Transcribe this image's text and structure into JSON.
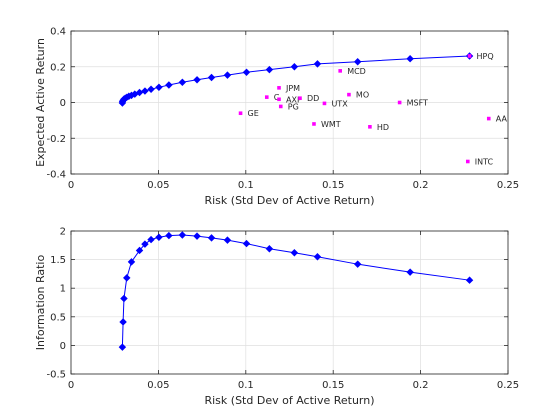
{
  "chart_data": [
    {
      "type": "scatter",
      "title": "",
      "xlabel": "Risk (Std Dev of Active Return)",
      "ylabel": "Expected Active Return",
      "xlim": [
        0,
        0.25
      ],
      "ylim": [
        -0.4,
        0.4
      ],
      "xticks": [
        0,
        0.05,
        0.1,
        0.15,
        0.2,
        0.25
      ],
      "yticks": [
        -0.4,
        -0.2,
        0,
        0.2,
        0.4
      ],
      "xtick_labels": [
        "0",
        "0.05",
        "0.1",
        "0.15",
        "0.2",
        "0.25"
      ],
      "ytick_labels": [
        "-0.4",
        "-0.2",
        "0",
        "0.2",
        "0.4"
      ],
      "grid": true,
      "colors": {
        "frontier": "#0000ff",
        "stocks": "#ff00ff"
      },
      "frontier": {
        "x": [
          0.0294,
          0.0295,
          0.0298,
          0.0303,
          0.031,
          0.0319,
          0.0331,
          0.0346,
          0.0365,
          0.0392,
          0.0423,
          0.0458,
          0.0503,
          0.056,
          0.0637,
          0.0721,
          0.0804,
          0.0895,
          0.1004,
          0.1135,
          0.1278,
          0.141,
          0.164,
          0.194,
          0.228
        ],
        "y": [
          -0.003,
          0.005,
          0.012,
          0.019,
          0.024,
          0.029,
          0.035,
          0.04,
          0.047,
          0.056,
          0.064,
          0.074,
          0.085,
          0.098,
          0.113,
          0.127,
          0.14,
          0.153,
          0.169,
          0.184,
          0.2,
          0.216,
          0.228,
          0.245,
          0.26
        ]
      },
      "stocks": [
        {
          "name": "HPQ",
          "x": 0.228,
          "y": 0.26
        },
        {
          "name": "MCD",
          "x": 0.154,
          "y": 0.177
        },
        {
          "name": "JPM",
          "x": 0.119,
          "y": 0.082
        },
        {
          "name": "MO",
          "x": 0.159,
          "y": 0.044
        },
        {
          "name": "C",
          "x": 0.112,
          "y": 0.03
        },
        {
          "name": "AXP",
          "x": 0.119,
          "y": 0.018
        },
        {
          "name": "DD",
          "x": 0.131,
          "y": 0.024
        },
        {
          "name": "UTX",
          "x": 0.145,
          "y": -0.005
        },
        {
          "name": "MSFT",
          "x": 0.188,
          "y": 0.0
        },
        {
          "name": "PG",
          "x": 0.12,
          "y": -0.022
        },
        {
          "name": "GE",
          "x": 0.097,
          "y": -0.06
        },
        {
          "name": "AA",
          "x": 0.239,
          "y": -0.09
        },
        {
          "name": "WMT",
          "x": 0.139,
          "y": -0.12
        },
        {
          "name": "HD",
          "x": 0.171,
          "y": -0.136
        },
        {
          "name": "INTC",
          "x": 0.227,
          "y": -0.33
        }
      ]
    },
    {
      "type": "line",
      "title": "",
      "xlabel": "Risk (Std Dev of Active Return)",
      "ylabel": "Information Ratio",
      "xlim": [
        0,
        0.25
      ],
      "ylim": [
        -0.5,
        2
      ],
      "xticks": [
        0,
        0.05,
        0.1,
        0.15,
        0.2,
        0.25
      ],
      "yticks": [
        -0.5,
        0,
        0.5,
        1,
        1.5,
        2
      ],
      "xtick_labels": [
        "0",
        "0.05",
        "0.1",
        "0.15",
        "0.2",
        "0.25"
      ],
      "ytick_labels": [
        "-0.5",
        "0",
        "0.5",
        "1",
        "1.5",
        "2"
      ],
      "grid": true,
      "colors": {
        "line": "#0000ff"
      },
      "series": [
        {
          "x": [
            0.0294,
            0.0298,
            0.0303,
            0.0319,
            0.0346,
            0.0392,
            0.0423,
            0.0458,
            0.0503,
            0.056,
            0.0637,
            0.0721,
            0.0804,
            0.0895,
            0.1004,
            0.1135,
            0.1278,
            0.141,
            0.164,
            0.194,
            0.228
          ],
          "y": [
            -0.03,
            0.41,
            0.82,
            1.18,
            1.46,
            1.66,
            1.77,
            1.85,
            1.89,
            1.92,
            1.93,
            1.91,
            1.88,
            1.84,
            1.78,
            1.69,
            1.62,
            1.55,
            1.42,
            1.28,
            1.14
          ]
        }
      ]
    }
  ]
}
